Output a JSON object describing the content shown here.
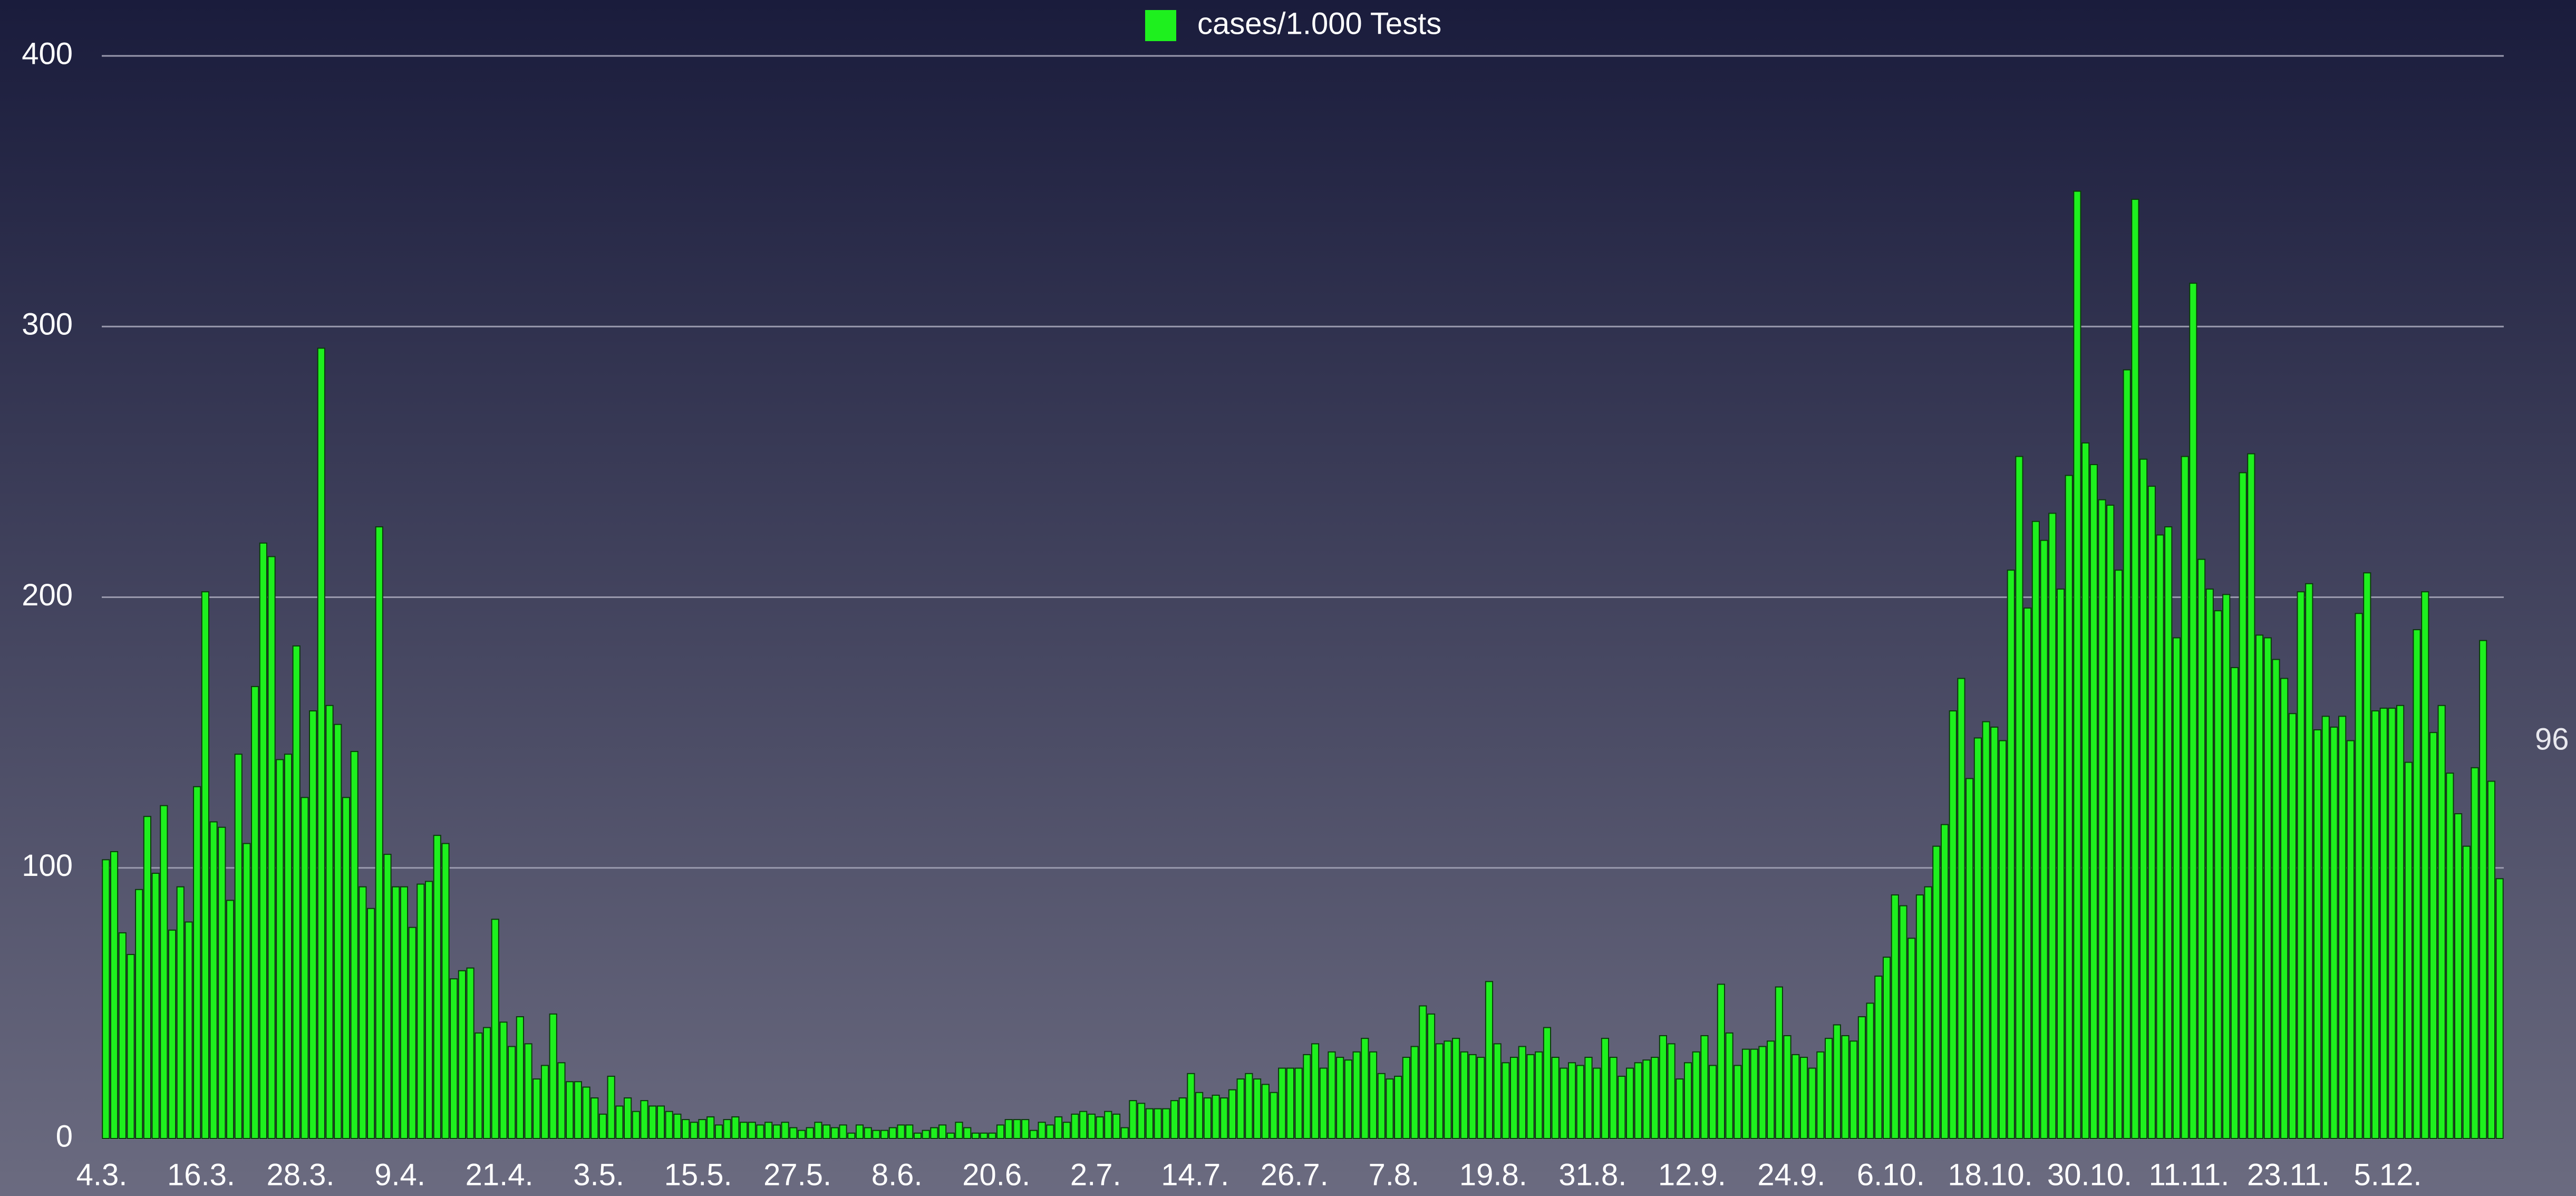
{
  "chart_data": {
    "type": "bar",
    "categories": [
      "4.3.",
      null,
      null,
      null,
      null,
      null,
      null,
      null,
      null,
      null,
      null,
      null,
      "16.3.",
      null,
      null,
      null,
      null,
      null,
      null,
      null,
      null,
      null,
      null,
      null,
      "28.3.",
      null,
      null,
      null,
      null,
      null,
      null,
      null,
      null,
      null,
      null,
      null,
      "9.4.",
      null,
      null,
      null,
      null,
      null,
      null,
      null,
      null,
      null,
      null,
      null,
      "21.4.",
      null,
      null,
      null,
      null,
      null,
      null,
      null,
      null,
      null,
      null,
      null,
      "3.5.",
      null,
      null,
      null,
      null,
      null,
      null,
      null,
      null,
      null,
      null,
      null,
      "15.5.",
      null,
      null,
      null,
      null,
      null,
      null,
      null,
      null,
      null,
      null,
      null,
      "27.5.",
      null,
      null,
      null,
      null,
      null,
      null,
      null,
      null,
      null,
      null,
      null,
      "8.6.",
      null,
      null,
      null,
      null,
      null,
      null,
      null,
      null,
      null,
      null,
      null,
      "20.6.",
      null,
      null,
      null,
      null,
      null,
      null,
      null,
      null,
      null,
      null,
      null,
      "2.7.",
      null,
      null,
      null,
      null,
      null,
      null,
      null,
      null,
      null,
      null,
      null,
      "14.7.",
      null,
      null,
      null,
      null,
      null,
      null,
      null,
      null,
      null,
      null,
      null,
      "26.7.",
      null,
      null,
      null,
      null,
      null,
      null,
      null,
      null,
      null,
      null,
      null,
      "7.8.",
      null,
      null,
      null,
      null,
      null,
      null,
      null,
      null,
      null,
      null,
      null,
      "19.8.",
      null,
      null,
      null,
      null,
      null,
      null,
      null,
      null,
      null,
      null,
      null,
      "31.8.",
      null,
      null,
      null,
      null,
      null,
      null,
      null,
      null,
      null,
      null,
      null,
      "12.9.",
      null,
      null,
      null,
      null,
      null,
      null,
      null,
      null,
      null,
      null,
      null,
      "24.9.",
      null,
      null,
      null,
      null,
      null,
      null,
      null,
      null,
      null,
      null,
      null,
      "6.10.",
      null,
      null,
      null,
      null,
      null,
      null,
      null,
      null,
      null,
      null,
      null,
      "18.10.",
      null,
      null,
      null,
      null,
      null,
      null,
      null,
      null,
      null,
      null,
      null,
      "30.10.",
      null,
      null,
      null,
      null,
      null,
      null,
      null,
      null,
      null,
      null,
      null,
      "11.11.",
      null,
      null,
      null,
      null,
      null,
      null,
      null,
      null,
      null,
      null,
      null,
      "23.11.",
      null,
      null,
      null,
      null,
      null,
      null,
      null,
      null,
      null,
      null,
      null,
      "5.12.",
      null,
      null,
      null,
      null,
      null,
      null,
      null,
      null,
      null,
      null,
      null,
      null,
      null
    ],
    "series": [
      {
        "name": "cases/1.000 Tests",
        "color": "#1ef01e",
        "values": [
          103,
          106,
          76,
          68,
          92,
          119,
          98,
          123,
          77,
          93,
          80,
          130,
          202,
          117,
          115,
          88,
          142,
          109,
          167,
          220,
          215,
          140,
          142,
          182,
          126,
          158,
          292,
          160,
          153,
          126,
          143,
          93,
          85,
          226,
          105,
          93,
          93,
          78,
          94,
          95,
          112,
          109,
          59,
          62,
          63,
          39,
          41,
          81,
          43,
          34,
          45,
          35,
          22,
          27,
          46,
          28,
          21,
          21,
          19,
          15,
          9,
          23,
          12,
          15,
          10,
          14,
          12,
          12,
          10,
          9,
          7,
          6,
          7,
          8,
          5,
          7,
          8,
          6,
          6,
          5,
          6,
          5,
          6,
          4,
          3,
          4,
          6,
          5,
          4,
          5,
          2,
          5,
          4,
          3,
          3,
          4,
          5,
          5,
          2,
          3,
          4,
          5,
          2,
          6,
          4,
          2,
          2,
          2,
          5,
          7,
          7,
          7,
          3,
          6,
          5,
          8,
          6,
          9,
          10,
          9,
          8,
          10,
          9,
          4,
          14,
          13,
          11,
          11,
          11,
          14,
          15,
          24,
          17,
          15,
          16,
          15,
          18,
          22,
          24,
          22,
          20,
          17,
          26,
          26,
          26,
          31,
          35,
          26,
          32,
          30,
          29,
          32,
          37,
          32,
          24,
          22,
          23,
          30,
          34,
          49,
          46,
          35,
          36,
          37,
          32,
          31,
          30,
          58,
          35,
          28,
          30,
          34,
          31,
          32,
          41,
          30,
          26,
          28,
          27,
          30,
          26,
          37,
          30,
          23,
          26,
          28,
          29,
          30,
          38,
          35,
          22,
          28,
          32,
          38,
          27,
          57,
          39,
          27,
          33,
          33,
          34,
          36,
          56,
          38,
          31,
          30,
          26,
          32,
          37,
          42,
          38,
          36,
          45,
          50,
          60,
          67,
          90,
          86,
          74,
          90,
          93,
          108,
          116,
          158,
          170,
          133,
          148,
          154,
          152,
          147,
          210,
          252,
          196,
          228,
          221,
          231,
          203,
          245,
          350,
          257,
          249,
          236,
          234,
          210,
          284,
          347,
          251,
          241,
          223,
          226,
          185,
          252,
          316,
          214,
          203,
          195,
          201,
          174,
          246,
          253,
          186,
          185,
          177,
          170,
          157,
          202,
          205,
          151,
          156,
          152,
          156,
          147,
          194,
          209,
          158,
          159,
          159,
          160,
          139,
          188,
          202,
          150,
          160,
          135,
          120,
          108,
          137,
          184,
          132,
          96
        ]
      }
    ],
    "ylim": [
      0,
      400
    ],
    "yticks": [
      0,
      100,
      200,
      300,
      400
    ],
    "grid": true
  }
}
